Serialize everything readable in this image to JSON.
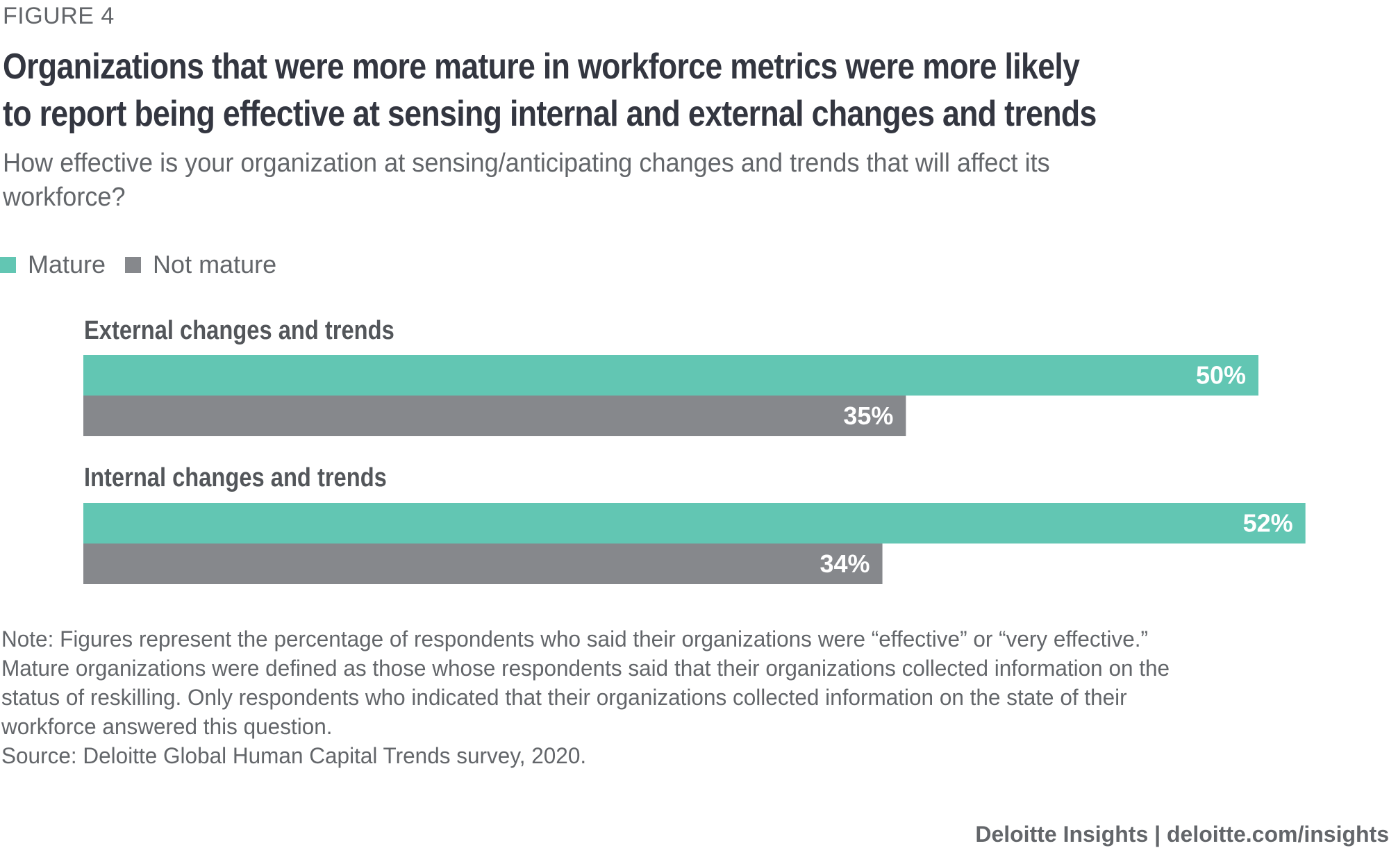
{
  "figure_label": "FIGURE 4",
  "title_lines": [
    "Organizations that were more mature in workforce metrics were more likely",
    "to report being effective at sensing internal and external changes and trends"
  ],
  "subtitle_lines": [
    "How effective is your organization at sensing/anticipating changes and trends that will affect its",
    "workforce?"
  ],
  "colors": {
    "mature": "#62c6b3",
    "not_mature": "#86888c",
    "label_text": "#ffffff"
  },
  "notes": [
    "Note: Figures represent the percentage of respondents who said their organizations were “effective” or “very effective.”",
    "Mature organizations were defined as those whose respondents said that their organizations collected information on the",
    "status of reskilling. Only respondents who indicated that their organizations collected information on the state of their",
    "workforce answered this question.",
    "Source: Deloitte Global Human Capital Trends survey, 2020."
  ],
  "footer": "Deloitte Insights | deloitte.com/insights",
  "chart_data": {
    "type": "bar",
    "orientation": "horizontal",
    "title": "Organizations that were more mature in workforce metrics were more likely to report being effective at sensing internal and external changes and trends",
    "subtitle": "How effective is your organization at sensing/anticipating changes and trends that will affect its workforce?",
    "categories": [
      "External changes and trends",
      "Internal changes and trends"
    ],
    "series": [
      {
        "name": "Mature",
        "values": [
          50,
          52
        ],
        "labels": [
          "50%",
          "52%"
        ]
      },
      {
        "name": "Not mature",
        "values": [
          35,
          34
        ],
        "labels": [
          "35%",
          "34%"
        ]
      }
    ],
    "unit": "%",
    "xlabel": "",
    "ylabel": "",
    "xlim": [
      0,
      52
    ],
    "grid": false,
    "axes_visible": false,
    "legend": {
      "entries": [
        "Mature",
        "Not mature"
      ],
      "placement": "top-left"
    }
  }
}
